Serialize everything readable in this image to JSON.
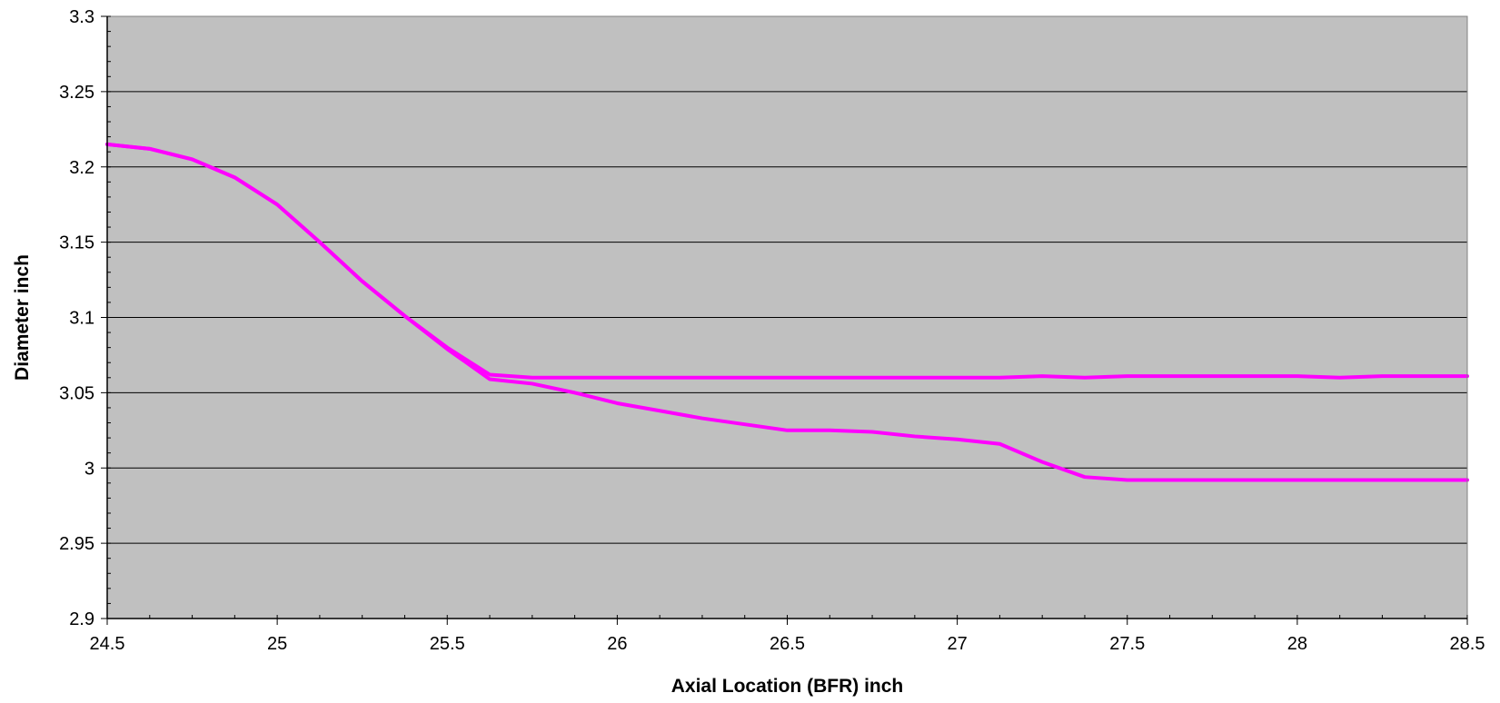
{
  "chart_data": {
    "type": "line",
    "title": "",
    "xlabel": "Axial Location (BFR) inch",
    "ylabel": "Diameter inch",
    "xlim": [
      24.5,
      28.5
    ],
    "ylim": [
      2.9,
      3.3
    ],
    "x_ticks": [
      24.5,
      25,
      25.5,
      26,
      26.5,
      27,
      27.5,
      28,
      28.5
    ],
    "x_tick_labels": [
      "24.5",
      "25",
      "25.5",
      "26",
      "26.5",
      "27",
      "27.5",
      "28",
      "28.5"
    ],
    "x_minor_step": 0.125,
    "y_ticks": [
      2.9,
      2.95,
      3.0,
      3.05,
      3.1,
      3.15,
      3.2,
      3.25,
      3.3
    ],
    "y_tick_labels": [
      "2.9",
      "2.95",
      "3",
      "3.05",
      "3.1",
      "3.15",
      "3.2",
      "3.25",
      "3.3"
    ],
    "y_minor_step": 0.01,
    "grid": "horizontal major",
    "legend": "none",
    "plot_background": "#c0c0c0",
    "series": [
      {
        "color": "#ff00ff",
        "x": [
          24.5,
          24.625,
          24.75,
          24.875,
          25.0,
          25.125,
          25.25,
          25.375,
          25.5,
          25.625,
          25.75,
          25.875,
          26.0,
          26.125,
          26.25,
          26.375,
          26.5,
          26.625,
          26.75,
          26.875,
          27.0,
          27.125,
          27.25,
          27.375,
          27.5,
          27.625,
          27.75,
          27.875,
          28.0,
          28.125,
          28.25,
          28.375,
          28.5
        ],
        "y": [
          3.215,
          3.212,
          3.205,
          3.193,
          3.175,
          3.15,
          3.124,
          3.101,
          3.08,
          3.062,
          3.06,
          3.06,
          3.06,
          3.06,
          3.06,
          3.06,
          3.06,
          3.06,
          3.06,
          3.06,
          3.06,
          3.06,
          3.061,
          3.06,
          3.061,
          3.061,
          3.061,
          3.061,
          3.061,
          3.06,
          3.061,
          3.061,
          3.061
        ]
      },
      {
        "color": "#ff00ff",
        "x": [
          24.5,
          24.625,
          24.75,
          24.875,
          25.0,
          25.125,
          25.25,
          25.375,
          25.5,
          25.625,
          25.75,
          25.875,
          26.0,
          26.125,
          26.25,
          26.375,
          26.5,
          26.625,
          26.75,
          26.875,
          27.0,
          27.125,
          27.25,
          27.375,
          27.5,
          27.625,
          27.75,
          27.875,
          28.0,
          28.125,
          28.25,
          28.375,
          28.5
        ],
        "y": [
          3.215,
          3.212,
          3.205,
          3.193,
          3.175,
          3.15,
          3.124,
          3.101,
          3.079,
          3.059,
          3.056,
          3.05,
          3.043,
          3.038,
          3.033,
          3.029,
          3.025,
          3.025,
          3.024,
          3.021,
          3.019,
          3.016,
          3.004,
          2.994,
          2.992,
          2.992,
          2.992,
          2.992,
          2.992,
          2.992,
          2.992,
          2.992,
          2.992
        ]
      }
    ]
  }
}
